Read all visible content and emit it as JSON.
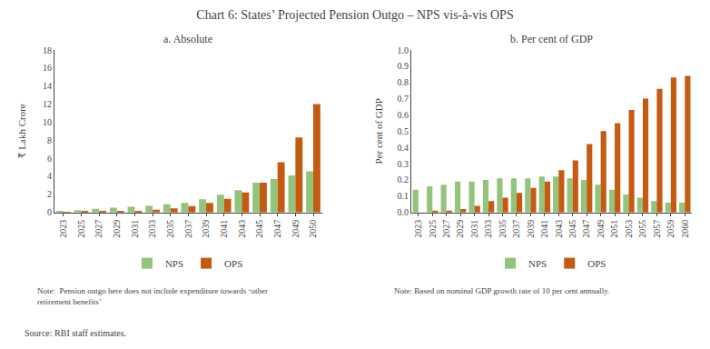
{
  "title": "Chart 6: States’ Projected Pension Outgo – NPS vis-à-vis OPS",
  "annotations": [
    "Source: RBI staff estimates."
  ],
  "chart_data": [
    {
      "type": "bar",
      "title": "a. Absolute",
      "ylabel": "₹ Lakh Crore",
      "categories": [
        "2023",
        "2025",
        "2027",
        "2029",
        "2031",
        "2033",
        "2035",
        "2037",
        "2039",
        "2041",
        "2043",
        "2045",
        "2047",
        "2049",
        "2050"
      ],
      "series": [
        {
          "name": "NPS",
          "color": "#92c47c",
          "values": [
            0.1,
            0.25,
            0.38,
            0.52,
            0.62,
            0.72,
            0.9,
            1.05,
            1.45,
            1.95,
            2.45,
            3.3,
            3.7,
            4.1,
            4.55
          ]
        },
        {
          "name": "OPS",
          "color": "#c55a11",
          "values": [
            0.05,
            0.08,
            0.1,
            0.12,
            0.15,
            0.3,
            0.45,
            0.7,
            1.05,
            1.5,
            2.2,
            3.3,
            5.55,
            8.3,
            12.0
          ]
        }
      ],
      "ylim": [
        0,
        18
      ],
      "yticks": [
        0,
        2,
        4,
        6,
        8,
        10,
        12,
        14,
        16,
        18
      ],
      "grid": false,
      "legend": "bottom",
      "annotations": [
        "Note:  Pension outgo here does not include expenditure towards ‘other\nretirement benefits’"
      ]
    },
    {
      "type": "bar",
      "title": "b. Per cent of GDP",
      "ylabel": "Per cent of GDP",
      "categories": [
        "2023",
        "2025",
        "2027",
        "2029",
        "2031",
        "2033",
        "2035",
        "2037",
        "2039",
        "2041",
        "2043",
        "2045",
        "2047",
        "2049",
        "2051",
        "2053",
        "2055",
        "2057",
        "2059",
        "2060"
      ],
      "series": [
        {
          "name": "NPS",
          "color": "#92c47c",
          "values": [
            0.14,
            0.16,
            0.17,
            0.19,
            0.19,
            0.2,
            0.21,
            0.21,
            0.21,
            0.22,
            0.22,
            0.21,
            0.2,
            0.17,
            0.14,
            0.11,
            0.09,
            0.07,
            0.06,
            0.06
          ]
        },
        {
          "name": "OPS",
          "color": "#c55a11",
          "values": [
            0.0,
            0.01,
            0.01,
            0.02,
            0.04,
            0.07,
            0.09,
            0.12,
            0.15,
            0.19,
            0.26,
            0.32,
            0.42,
            0.5,
            0.55,
            0.63,
            0.7,
            0.76,
            0.83,
            0.84
          ]
        }
      ],
      "ylim": [
        0,
        1.0
      ],
      "yticks": [
        {
          "value": 0.0,
          "label": "0.0"
        },
        0.1,
        0.2,
        0.3,
        0.4,
        0.5,
        0.6,
        0.7,
        0.8,
        0.9,
        {
          "value": 1.0,
          "label": "1.0"
        }
      ],
      "grid": false,
      "legend": "bottom",
      "annotations": [
        "Note: Based on nominal GDP growth rate of 10 per cent annually."
      ]
    }
  ]
}
